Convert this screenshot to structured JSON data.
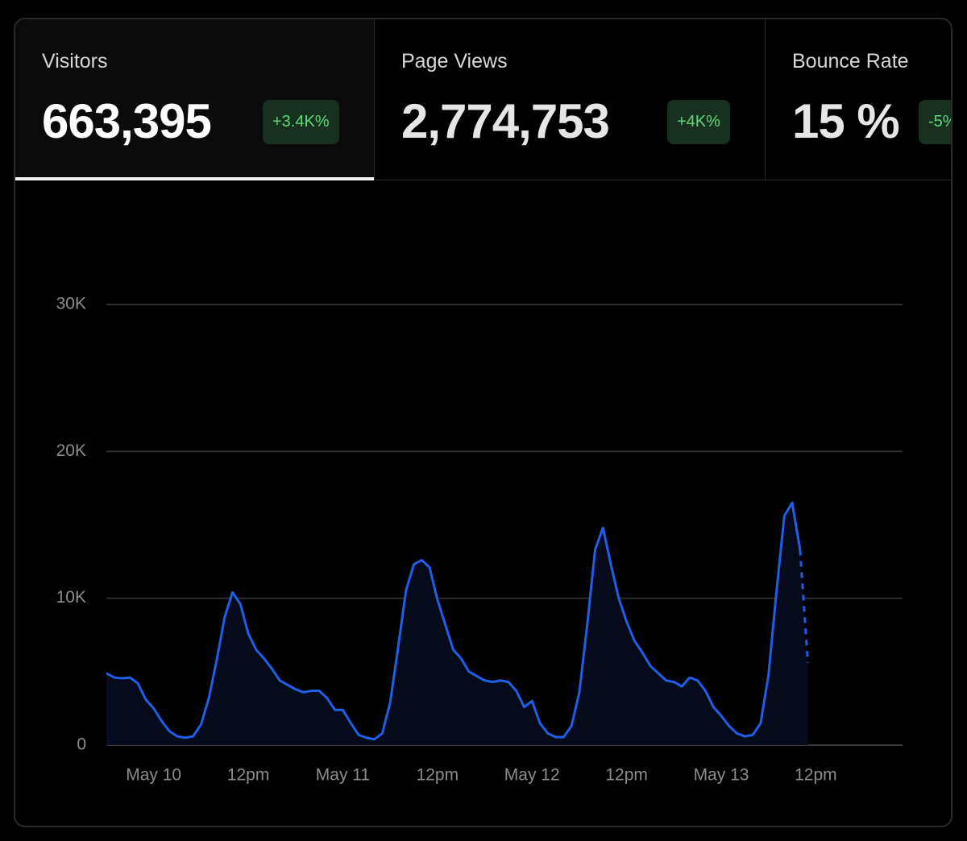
{
  "tabs": [
    {
      "label": "Visitors",
      "value": "663,395",
      "change": "+3.4K%"
    },
    {
      "label": "Page Views",
      "value": "2,774,753",
      "change": "+4K%"
    },
    {
      "label": "Bounce Rate",
      "value": "15 %",
      "change": "-5%"
    }
  ],
  "active_tab": 0,
  "chart_data": {
    "type": "area",
    "categories": [
      null,
      null,
      null,
      null,
      null,
      null,
      "May 10",
      null,
      null,
      null,
      null,
      null,
      null,
      null,
      null,
      null,
      null,
      null,
      "12pm",
      null,
      null,
      null,
      null,
      null,
      null,
      null,
      null,
      null,
      null,
      null,
      "May 11",
      null,
      null,
      null,
      null,
      null,
      null,
      null,
      null,
      null,
      null,
      null,
      "12pm",
      null,
      null,
      null,
      null,
      null,
      null,
      null,
      null,
      null,
      null,
      null,
      "May 12",
      null,
      null,
      null,
      null,
      null,
      null,
      null,
      null,
      null,
      null,
      null,
      "12pm",
      null,
      null,
      null,
      null,
      null,
      null,
      null,
      null,
      null,
      null,
      null,
      "May 13",
      null,
      null,
      null,
      null,
      null,
      null,
      null,
      null,
      null,
      null,
      null,
      "12pm",
      null,
      null,
      null,
      null,
      null,
      null,
      null,
      null,
      null,
      null,
      null
    ],
    "values": [
      4900,
      4600,
      4550,
      4600,
      4200,
      3100,
      2500,
      1650,
      950,
      600,
      500,
      600,
      1400,
      3200,
      5800,
      8700,
      10400,
      9600,
      7600,
      6500,
      5900,
      5200,
      4400,
      4100,
      3800,
      3600,
      3700,
      3700,
      3200,
      2400,
      2400,
      1500,
      700,
      500,
      400,
      800,
      2900,
      6600,
      10500,
      12300,
      12600,
      12100,
      9900,
      8200,
      6500,
      5900,
      5000,
      4700,
      4400,
      4300,
      4400,
      4300,
      3700,
      2600,
      3000,
      1500,
      800,
      550,
      550,
      1300,
      3600,
      8200,
      13300,
      14800,
      12300,
      10000,
      8400,
      7100,
      6300,
      5400,
      4900,
      4400,
      4300,
      4000,
      4600,
      4400,
      3700,
      2600,
      2000,
      1300,
      800,
      600,
      700,
      1500,
      4800,
      10400,
      15600,
      16500,
      13300,
      5600,
      null,
      null,
      null,
      null,
      null,
      null,
      null,
      null,
      null,
      null,
      null,
      null
    ],
    "color": "#1f5fe6",
    "area_color": "#050b1c",
    "last_segment_style": "dashed",
    "ylim": [
      0,
      30000
    ],
    "yticks": [
      0,
      {
        "value": 10000,
        "label": "10K"
      },
      {
        "value": 20000,
        "label": "20K"
      },
      {
        "value": 30000,
        "label": "30K"
      }
    ],
    "grid": true
  }
}
